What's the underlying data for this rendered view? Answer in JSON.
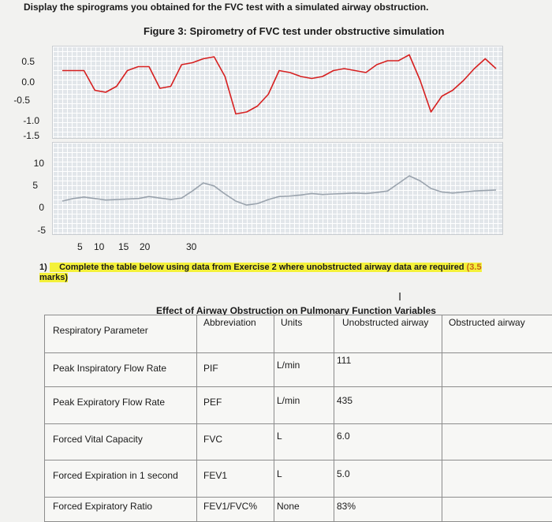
{
  "heading": "Display the spirograms you obtained for the FVC test with a simulated airway obstruction.",
  "figure_title": "Figure 3: Spirometry of FVC test under obstructive simulation",
  "chart_data": [
    {
      "type": "line",
      "title": "",
      "y_ticks": [
        "0.5",
        "0.0",
        "-0.5",
        "-1.0",
        "-1.5"
      ],
      "ylim": [
        -1.5,
        0.5
      ],
      "grid": true,
      "series": [
        {
          "color": "#d62020",
          "x": [
            0,
            1,
            2,
            3,
            4,
            5,
            6,
            7,
            8,
            9,
            10,
            11,
            12,
            13,
            14,
            15,
            16,
            17,
            18,
            19,
            20,
            21,
            22,
            23,
            24,
            25,
            26,
            27,
            28,
            29,
            30,
            31,
            32,
            33,
            34,
            35,
            36,
            37,
            38,
            39,
            40
          ],
          "y": [
            0.05,
            0.05,
            0.05,
            -0.45,
            -0.5,
            -0.35,
            0.05,
            0.15,
            0.15,
            -0.4,
            -0.35,
            0.2,
            0.25,
            0.35,
            0.4,
            -0.1,
            -1.05,
            -1.0,
            -0.85,
            -0.55,
            0.05,
            0.0,
            -0.1,
            -0.15,
            -0.1,
            0.05,
            0.1,
            0.05,
            0.0,
            0.2,
            0.3,
            0.3,
            0.45,
            -0.2,
            -1.0,
            -0.6,
            -0.45,
            -0.2,
            0.1,
            0.35,
            0.1
          ]
        }
      ]
    },
    {
      "type": "line",
      "title": "",
      "y_ticks": [
        "10",
        "5",
        "0",
        "-5"
      ],
      "x_ticks": [
        "5",
        "10",
        "15",
        "20",
        "30"
      ],
      "ylim": [
        -5,
        10
      ],
      "grid": true,
      "series": [
        {
          "color": "#9aa3ad",
          "x": [
            0,
            1,
            2,
            3,
            4,
            5,
            6,
            7,
            8,
            9,
            10,
            11,
            12,
            13,
            14,
            15,
            16,
            17,
            18,
            19,
            20,
            21,
            22,
            23,
            24,
            25,
            26,
            27,
            28,
            29,
            30,
            31,
            32,
            33,
            34,
            35,
            36,
            37,
            38,
            39,
            40
          ],
          "y": [
            0.0,
            0.5,
            0.8,
            0.5,
            0.2,
            0.3,
            0.4,
            0.5,
            0.9,
            0.6,
            0.3,
            0.6,
            2.0,
            3.6,
            3.0,
            1.4,
            0.0,
            -0.8,
            -0.5,
            0.3,
            0.9,
            1.0,
            1.2,
            1.5,
            1.3,
            1.4,
            1.5,
            1.6,
            1.5,
            1.7,
            2.0,
            3.5,
            5.0,
            4.0,
            2.5,
            1.8,
            1.6,
            1.8,
            2.0,
            2.1,
            2.2
          ]
        }
      ]
    }
  ],
  "question": {
    "number": "1)",
    "text": "Complete the table below using data from Exercise 2 where unobstructed airway data are required",
    "points": "(3.5",
    "points_tail": "marks)"
  },
  "table": {
    "title": "Effect of Airway Obstruction on Pulmonary Function Variables",
    "headers": [
      "Respiratory Parameter",
      "Abbreviation",
      "Units",
      "Unobstructed airway",
      "Obstructed airway"
    ],
    "rows": [
      {
        "param": "Peak Inspiratory Flow Rate",
        "abbr": "PIF",
        "units": "L/min",
        "unobstructed": "111",
        "obstructed": ""
      },
      {
        "param": "Peak Expiratory Flow Rate",
        "abbr": "PEF",
        "units": "L/min",
        "unobstructed": "435",
        "obstructed": ""
      },
      {
        "param": "Forced Vital Capacity",
        "abbr": "FVC",
        "units": "L",
        "unobstructed": "6.0",
        "obstructed": ""
      },
      {
        "param": "Forced Expiration in 1 second",
        "abbr": "FEV1",
        "units": "L",
        "unobstructed": "5.0",
        "obstructed": ""
      },
      {
        "param": "Forced Expiratory Ratio",
        "abbr": "FEV1/FVC%",
        "units": "None",
        "unobstructed": "83%",
        "obstructed": ""
      }
    ]
  }
}
